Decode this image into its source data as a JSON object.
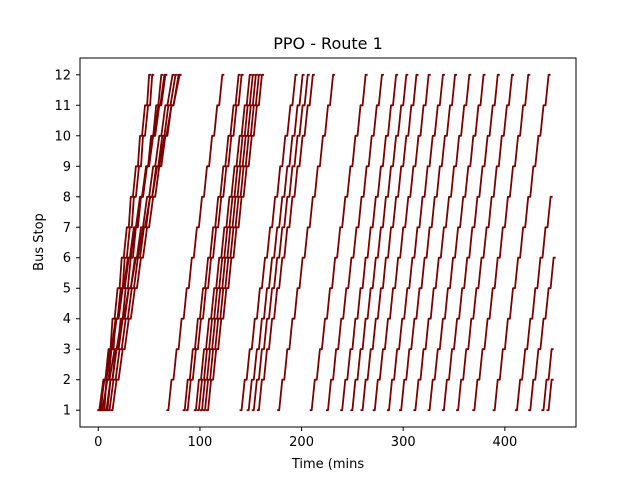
{
  "chart_data": {
    "type": "line",
    "title": "PPO - Route 1",
    "xlabel": "Time (mins",
    "ylabel": "Bus Stop",
    "xlim": [
      -18,
      470
    ],
    "ylim": [
      0.45,
      12.55
    ],
    "xticks": [
      0,
      100,
      200,
      300,
      400
    ],
    "xtick_labels": [
      "0",
      "100",
      "200",
      "300",
      "400"
    ],
    "yticks": [
      1,
      2,
      3,
      4,
      5,
      6,
      7,
      8,
      9,
      10,
      11,
      12
    ],
    "ytick_labels": [
      "1",
      "2",
      "3",
      "4",
      "5",
      "6",
      "7",
      "8",
      "9",
      "10",
      "11",
      "12"
    ],
    "grid": false,
    "legend": "none",
    "line_color": "#7a0000",
    "stops": [
      1,
      2,
      3,
      4,
      5,
      6,
      7,
      8,
      9,
      10,
      11,
      12
    ],
    "dwell_minutes": 2,
    "series": [
      {
        "depart": [
          3,
          7,
          12,
          16,
          21,
          25,
          30,
          34,
          39,
          43,
          48,
          52
        ]
      },
      {
        "depart": [
          6,
          10,
          15,
          19,
          24,
          28,
          33,
          37,
          42,
          46,
          51,
          55
        ]
      },
      {
        "depart": [
          9,
          14,
          19,
          24,
          29,
          34,
          39,
          44,
          49,
          54,
          59,
          64
        ]
      },
      {
        "depart": [
          2,
          8,
          14,
          20,
          26,
          32,
          38,
          44,
          50,
          56,
          62,
          68
        ]
      },
      {
        "depart": [
          8,
          14,
          20,
          26,
          32,
          38,
          44,
          50,
          56,
          62,
          68,
          75
        ]
      },
      {
        "depart": [
          11,
          17,
          23,
          29,
          35,
          41,
          47,
          53,
          59,
          65,
          71,
          78
        ]
      },
      {
        "depart": [
          14,
          20,
          26,
          32,
          38,
          44,
          50,
          56,
          62,
          68,
          74,
          81
        ]
      },
      {
        "depart": [
          1,
          7,
          13,
          19,
          25,
          31,
          37,
          43,
          49,
          55,
          61,
          67
        ]
      },
      {
        "depart": [
          4,
          11,
          18,
          25,
          32,
          39,
          46,
          53,
          60,
          67,
          74,
          82
        ]
      },
      {
        "depart": [
          69,
          74,
          79,
          84,
          89,
          94,
          99,
          104,
          109,
          114,
          119,
          124
        ]
      },
      {
        "depart": [
          85,
          90,
          95,
          100,
          105,
          110,
          115,
          120,
          125,
          130,
          135,
          140
        ]
      },
      {
        "depart": [
          88,
          93,
          98,
          103,
          108,
          113,
          118,
          123,
          128,
          133,
          138,
          143
        ]
      },
      {
        "depart": [
          96,
          101,
          106,
          111,
          116,
          121,
          126,
          131,
          136,
          141,
          146,
          151
        ]
      },
      {
        "depart": [
          99,
          104,
          109,
          114,
          119,
          124,
          129,
          134,
          139,
          144,
          149,
          154
        ]
      },
      {
        "depart": [
          102,
          107,
          112,
          117,
          122,
          127,
          132,
          137,
          142,
          147,
          152,
          157
        ]
      },
      {
        "depart": [
          105,
          110,
          115,
          120,
          125,
          130,
          135,
          140,
          145,
          150,
          155,
          160
        ]
      },
      {
        "depart": [
          108,
          113,
          118,
          123,
          128,
          133,
          138,
          143,
          148,
          153,
          158,
          163
        ]
      },
      {
        "depart": [
          141,
          146,
          151,
          156,
          161,
          166,
          171,
          176,
          181,
          186,
          191,
          196
        ]
      },
      {
        "depart": [
          148,
          153,
          158,
          163,
          168,
          173,
          178,
          183,
          188,
          193,
          198,
          203
        ]
      },
      {
        "depart": [
          153,
          158,
          163,
          168,
          173,
          178,
          183,
          188,
          193,
          198,
          203,
          208
        ]
      },
      {
        "depart": [
          158,
          163,
          168,
          173,
          178,
          183,
          188,
          193,
          198,
          203,
          208,
          213
        ]
      },
      {
        "depart": [
          178,
          183,
          188,
          193,
          198,
          203,
          208,
          213,
          218,
          223,
          228,
          233
        ]
      },
      {
        "depart": [
          210,
          215,
          220,
          225,
          230,
          235,
          240,
          245,
          250,
          255,
          260,
          265
        ]
      },
      {
        "depart": [
          226,
          231,
          236,
          241,
          246,
          251,
          256,
          261,
          266,
          271,
          276,
          281
        ]
      },
      {
        "depart": [
          240,
          245,
          250,
          255,
          260,
          265,
          270,
          275,
          280,
          285,
          290,
          295
        ]
      },
      {
        "depart": [
          250,
          255,
          260,
          265,
          270,
          275,
          280,
          285,
          290,
          295,
          300,
          305
        ]
      },
      {
        "depart": [
          260,
          265,
          270,
          275,
          280,
          285,
          290,
          295,
          300,
          305,
          310,
          315
        ]
      },
      {
        "depart": [
          272,
          277,
          282,
          287,
          292,
          297,
          302,
          307,
          312,
          317,
          322,
          327
        ]
      },
      {
        "depart": [
          286,
          291,
          296,
          301,
          306,
          311,
          316,
          321,
          326,
          331,
          336,
          341
        ]
      },
      {
        "depart": [
          298,
          303,
          308,
          313,
          318,
          323,
          328,
          333,
          338,
          343,
          348,
          353
        ]
      },
      {
        "depart": [
          312,
          317,
          322,
          327,
          332,
          337,
          342,
          347,
          352,
          357,
          362,
          367
        ]
      },
      {
        "depart": [
          326,
          331,
          336,
          341,
          346,
          351,
          356,
          361,
          366,
          371,
          376,
          381
        ]
      },
      {
        "depart": [
          340,
          345,
          350,
          355,
          360,
          365,
          370,
          375,
          380,
          385,
          390,
          395
        ]
      },
      {
        "depart": [
          354,
          359,
          364,
          369,
          374,
          379,
          384,
          389,
          394,
          399,
          404,
          409
        ]
      },
      {
        "depart": [
          370,
          375,
          380,
          385,
          390,
          395,
          400,
          405,
          410,
          415,
          420,
          425
        ]
      },
      {
        "depart": [
          390,
          395,
          400,
          405,
          410,
          415,
          420,
          425,
          430,
          435,
          440,
          445
        ]
      },
      {
        "depart": [
          412,
          417,
          422,
          427,
          432,
          437,
          442,
          447
        ]
      },
      {
        "depart": [
          425,
          430,
          435,
          440,
          445,
          450
        ]
      },
      {
        "depart": [
          438,
          443,
          448
        ]
      },
      {
        "depart": [
          443,
          448
        ]
      }
    ]
  }
}
